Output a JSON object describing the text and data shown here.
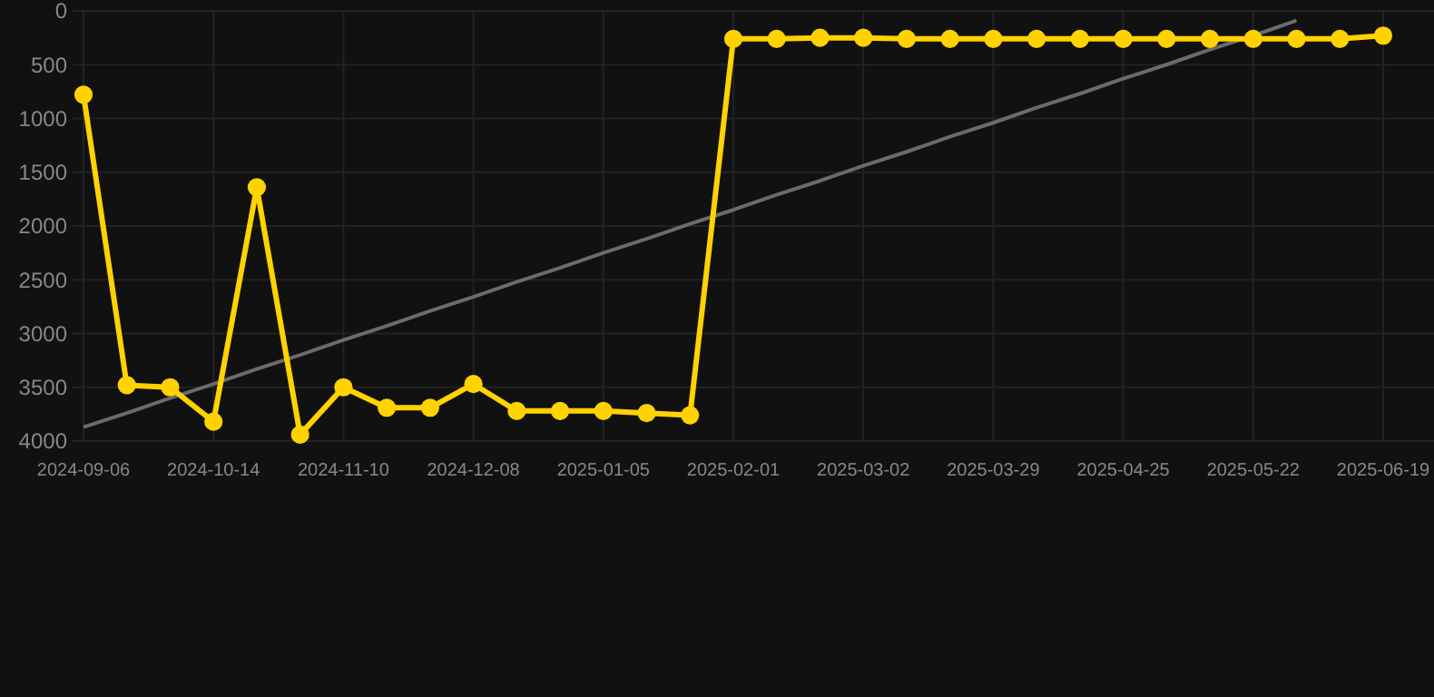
{
  "chart_data": {
    "type": "line",
    "categories": [
      "2024-09-06",
      null,
      null,
      "2024-10-14",
      null,
      null,
      "2024-11-10",
      null,
      null,
      "2024-12-08",
      null,
      null,
      "2025-01-05",
      null,
      null,
      "2025-02-01",
      null,
      null,
      "2025-03-02",
      null,
      null,
      "2025-03-29",
      null,
      null,
      "2025-04-25",
      null,
      null,
      "2025-05-22",
      null,
      null,
      "2025-06-19"
    ],
    "series": [
      {
        "color": "#ffd200",
        "marker": "circle",
        "values": [
          780,
          3480,
          3500,
          3820,
          1640,
          3940,
          3500,
          3690,
          3690,
          3470,
          3720,
          3720,
          3720,
          3740,
          3760,
          260,
          260,
          250,
          250,
          260,
          260,
          260,
          260,
          260,
          260,
          260,
          260,
          260,
          260,
          260,
          230
        ]
      },
      {
        "color": "#6b6b6b",
        "marker": "none",
        "values": [
          3870,
          3740,
          3600,
          3470,
          3330,
          3200,
          3060,
          2930,
          2790,
          2660,
          2520,
          2390,
          2250,
          2120,
          1980,
          1850,
          1710,
          1580,
          1440,
          1310,
          1170,
          1040,
          900,
          770,
          630,
          500,
          360,
          230,
          90,
          null,
          null
        ]
      }
    ],
    "ylim": [
      4000,
      0
    ],
    "yticks": [
      0,
      500,
      1000,
      1500,
      2000,
      2500,
      3000,
      3500,
      4000
    ],
    "grid": true
  }
}
